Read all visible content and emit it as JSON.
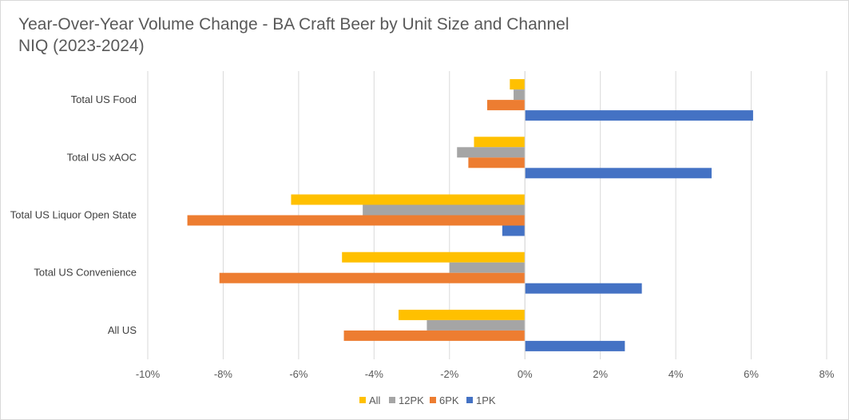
{
  "chart_data": {
    "type": "bar",
    "orientation": "horizontal",
    "title": "Year-Over-Year Volume Change - BA Craft Beer by Unit Size and Channel",
    "subtitle": "NIQ (2023-2024)",
    "categories": [
      "Total US Food",
      "Total US xAOC",
      "Total US Liquor Open State",
      "Total US Convenience",
      "All US"
    ],
    "series": [
      {
        "name": "All",
        "color": "#ffc000",
        "values": [
          -0.4,
          -1.35,
          -6.2,
          -4.85,
          -3.35
        ]
      },
      {
        "name": "12PK",
        "color": "#a5a5a5",
        "values": [
          -0.3,
          -1.8,
          -4.3,
          -2.0,
          -2.6
        ]
      },
      {
        "name": "6PK",
        "color": "#ed7d31",
        "values": [
          -1.0,
          -1.5,
          -8.95,
          -8.1,
          -4.8
        ]
      },
      {
        "name": "1PK",
        "color": "#4472c4",
        "values": [
          6.05,
          4.95,
          -0.6,
          3.1,
          2.65
        ]
      }
    ],
    "xlim": [
      -10,
      8
    ],
    "xticks": [
      -10,
      -8,
      -6,
      -4,
      -2,
      0,
      2,
      4,
      6,
      8
    ],
    "xtick_labels": [
      "-10%",
      "-8%",
      "-6%",
      "-4%",
      "-2%",
      "0%",
      "2%",
      "4%",
      "6%",
      "8%"
    ],
    "xlabel": "",
    "ylabel": "",
    "grid": true,
    "legend_position": "bottom"
  }
}
